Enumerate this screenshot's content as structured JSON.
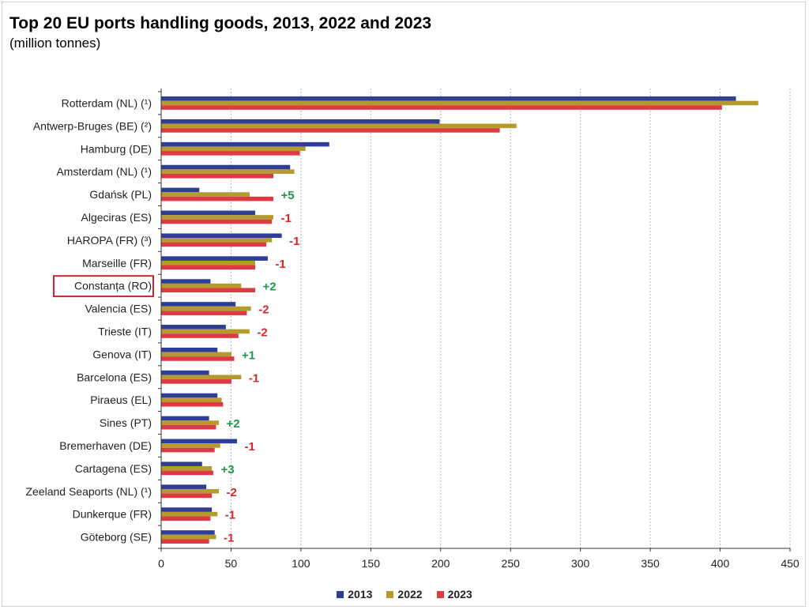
{
  "colors": {
    "s2013": "#2e3d95",
    "s2022": "#b59a30",
    "s2023": "#dc3b45",
    "up": "#1a9a4a",
    "down": "#d7262e",
    "highlight": "#cc2233"
  },
  "chart_data": {
    "type": "bar",
    "orientation": "horizontal",
    "title": "Top 20 EU ports handling goods, 2013, 2022 and 2023",
    "subtitle": "(million tonnes)",
    "categories": [
      "Rotterdam (NL) (¹)",
      "Antwerp-Bruges (BE) (²)",
      "Hamburg (DE)",
      "Amsterdam (NL) (¹)",
      "Gdańsk (PL)",
      "Algeciras (ES)",
      "HAROPA (FR) (³)",
      "Marseille (FR)",
      "Constanța (RO)",
      "Valencia (ES)",
      "Trieste (IT)",
      "Genova (IT)",
      "Barcelona (ES)",
      "Piraeus (EL)",
      "Sines (PT)",
      "Bremerhaven (DE)",
      "Cartagena (ES)",
      "Zeeland Seaports (NL) (¹)",
      "Dunkerque (FR)",
      "Göteborg (SE)"
    ],
    "series": [
      {
        "name": "2013",
        "values": [
          411,
          199,
          120,
          92,
          27,
          67,
          86,
          76,
          35,
          53,
          46,
          40,
          34,
          40,
          34,
          54,
          29,
          32,
          36,
          38
        ]
      },
      {
        "name": "2022",
        "values": [
          427,
          254,
          103,
          95,
          63,
          80,
          79,
          67,
          57,
          64,
          63,
          50,
          57,
          43,
          41,
          42,
          36,
          41,
          40,
          39
        ]
      },
      {
        "name": "2023",
        "values": [
          401,
          242,
          99,
          80,
          80,
          79,
          75,
          67,
          67,
          61,
          55,
          52,
          50,
          44,
          39,
          38,
          37,
          36,
          35,
          34
        ]
      }
    ],
    "rank_changes": [
      "",
      "",
      "",
      "",
      "+5",
      "-1",
      "-1",
      "-1",
      "+2",
      "-2",
      "-2",
      "+1",
      "-1",
      "",
      "+2",
      "-1",
      "+3",
      "-2",
      "-1",
      "-1"
    ],
    "highlighted_category": "Constanța (RO)",
    "xlim": [
      0,
      450
    ],
    "xticks": [
      0,
      50,
      100,
      150,
      200,
      250,
      300,
      350,
      400,
      450
    ],
    "grid": "vertical dashed",
    "legend_position": "bottom"
  }
}
